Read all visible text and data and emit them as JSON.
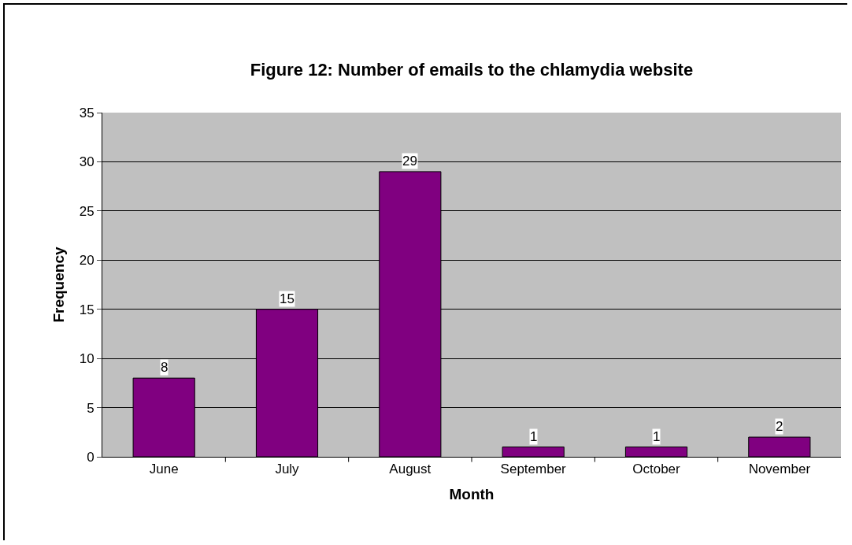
{
  "chart_data": {
    "type": "bar",
    "title": "Figure 12: Number of emails to the chlamydia website",
    "xlabel": "Month",
    "ylabel": "Frequency",
    "categories": [
      "June",
      "July",
      "August",
      "September",
      "October",
      "November"
    ],
    "values": [
      8,
      15,
      29,
      1,
      1,
      2
    ],
    "color": "#800080",
    "ylim": [
      0,
      35
    ],
    "yticks": [
      0,
      5,
      10,
      15,
      20,
      25,
      30,
      35
    ],
    "grid": "y",
    "data_labels": true,
    "legend": false
  }
}
